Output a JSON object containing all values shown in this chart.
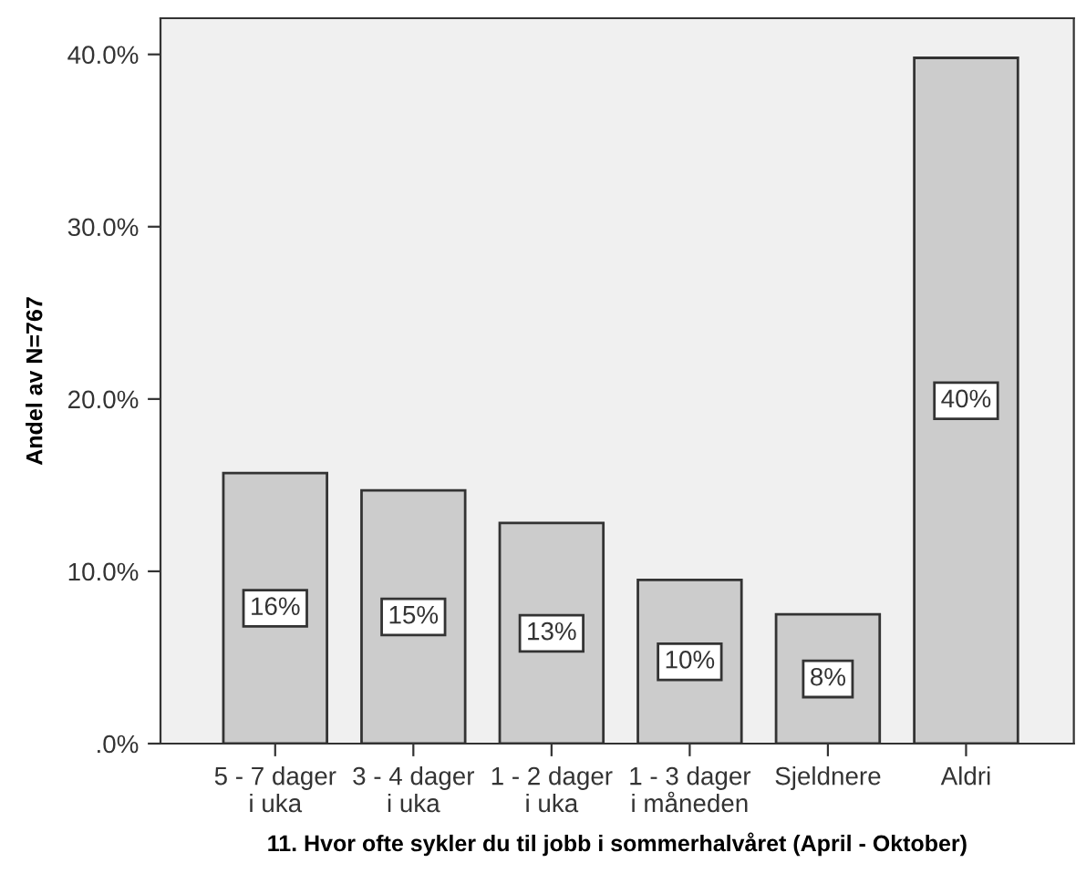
{
  "chart_data": {
    "type": "bar",
    "xlabel": "11. Hvor ofte sykler du til jobb i sommerhalvåret (April - Oktober)",
    "ylabel": "Andel av N=767",
    "categories": [
      "5 - 7 dager\ni uka",
      "3 - 4 dager\ni uka",
      "1 - 2 dager\ni uka",
      "1 - 3 dager\ni måneden",
      "Sjeldnere",
      "Aldri"
    ],
    "values": [
      15.7,
      14.7,
      12.8,
      9.5,
      7.5,
      39.8
    ],
    "value_labels": [
      "16%",
      "15%",
      "13%",
      "10%",
      "8%",
      "40%"
    ],
    "color": "#cccccc",
    "ylim": [
      0,
      42.1
    ],
    "yticks": [
      {
        "value": 0,
        "label": ".0%"
      },
      {
        "value": 10,
        "label": "10.0%"
      },
      {
        "value": 20,
        "label": "20.0%"
      },
      {
        "value": 30,
        "label": "30.0%"
      },
      {
        "value": 40,
        "label": "40.0%"
      }
    ],
    "grid": false
  }
}
